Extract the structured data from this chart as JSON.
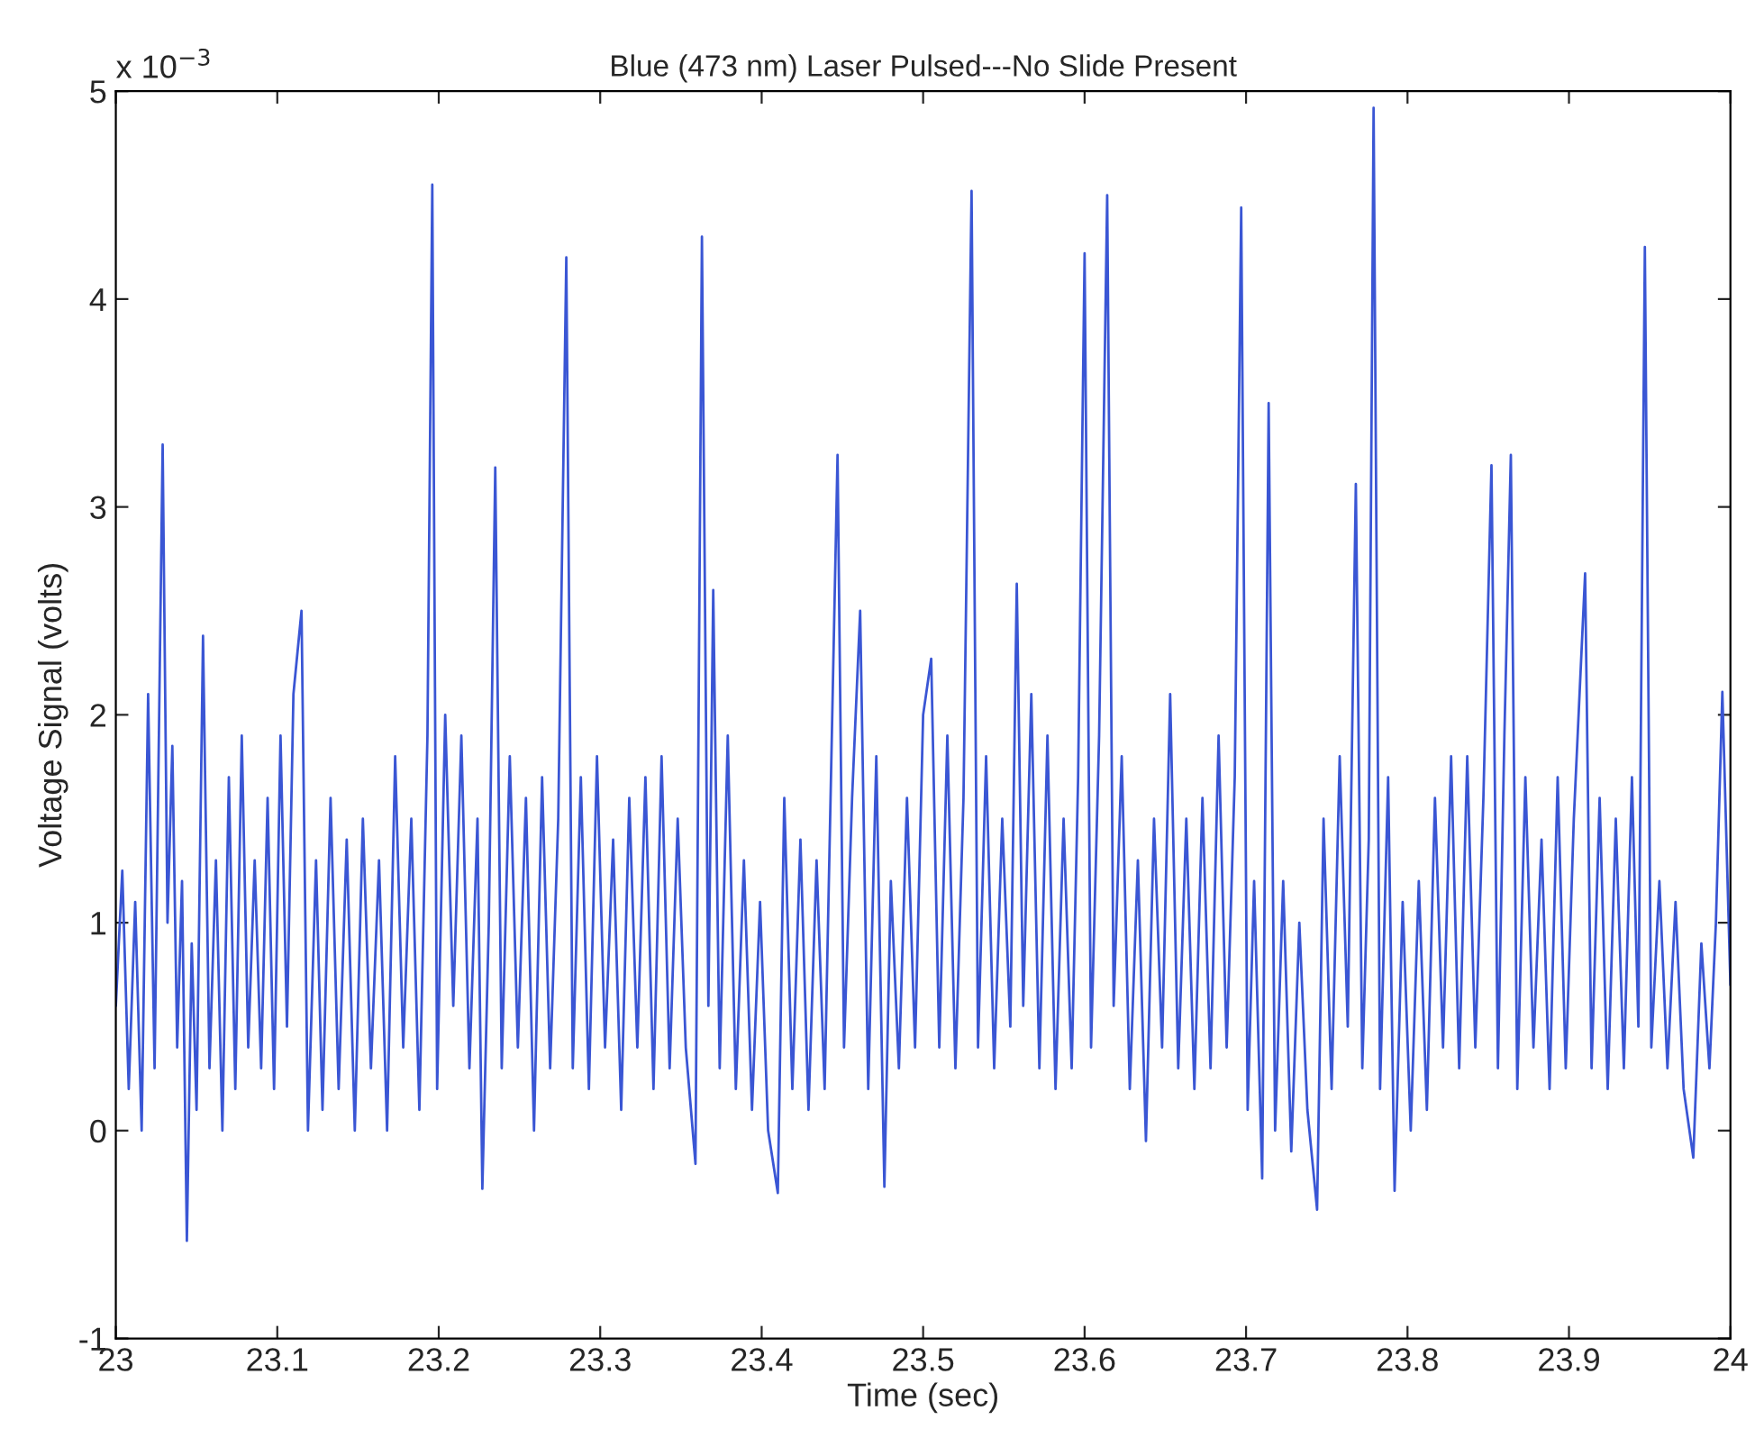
{
  "chart_data": {
    "type": "line",
    "title": "Blue (473 nm) Laser Pulsed---No Slide Present",
    "xlabel": "Time (sec)",
    "ylabel": "Voltage Signal (volts)",
    "annotations": [
      "x 10$^{−3}$"
    ],
    "xlim": [
      23,
      24
    ],
    "xticks": [
      23,
      23.1,
      23.2,
      23.3,
      23.4,
      23.5,
      23.6,
      23.7,
      23.8,
      23.9,
      24
    ],
    "ylim": [
      -1,
      5
    ],
    "yticks": [
      -1,
      0,
      1,
      2,
      3,
      4,
      5
    ],
    "grid": false,
    "marker": "none",
    "line_style": "solid",
    "x": [
      23.0,
      23.004,
      23.008,
      23.012,
      23.016,
      23.02,
      23.024,
      23.029,
      23.032,
      23.035,
      23.038,
      23.041,
      23.044,
      23.047,
      23.05,
      23.054,
      23.058,
      23.062,
      23.066,
      23.07,
      23.074,
      23.078,
      23.082,
      23.086,
      23.09,
      23.094,
      23.098,
      23.102,
      23.106,
      23.11,
      23.115,
      23.119,
      23.124,
      23.128,
      23.133,
      23.138,
      23.143,
      23.148,
      23.153,
      23.158,
      23.163,
      23.168,
      23.173,
      23.178,
      23.183,
      23.188,
      23.193,
      23.196,
      23.199,
      23.204,
      23.209,
      23.214,
      23.219,
      23.224,
      23.227,
      23.231,
      23.235,
      23.239,
      23.244,
      23.249,
      23.254,
      23.259,
      23.264,
      23.269,
      23.274,
      23.279,
      23.283,
      23.288,
      23.293,
      23.298,
      23.303,
      23.308,
      23.313,
      23.318,
      23.323,
      23.328,
      23.333,
      23.338,
      23.343,
      23.348,
      23.353,
      23.359,
      23.363,
      23.367,
      23.37,
      23.374,
      23.379,
      23.384,
      23.389,
      23.394,
      23.399,
      23.404,
      23.41,
      23.414,
      23.419,
      23.424,
      23.429,
      23.434,
      23.439,
      23.447,
      23.451,
      23.456,
      23.461,
      23.466,
      23.471,
      23.476,
      23.48,
      23.485,
      23.49,
      23.495,
      23.5,
      23.505,
      23.51,
      23.515,
      23.52,
      23.525,
      23.53,
      23.534,
      23.539,
      23.544,
      23.549,
      23.554,
      23.558,
      23.562,
      23.567,
      23.572,
      23.577,
      23.582,
      23.587,
      23.592,
      23.596,
      23.6,
      23.604,
      23.609,
      23.614,
      23.618,
      23.623,
      23.628,
      23.633,
      23.638,
      23.643,
      23.648,
      23.653,
      23.658,
      23.663,
      23.668,
      23.673,
      23.678,
      23.683,
      23.688,
      23.693,
      23.697,
      23.701,
      23.705,
      23.71,
      23.714,
      23.718,
      23.723,
      23.728,
      23.733,
      23.738,
      23.744,
      23.748,
      23.753,
      23.758,
      23.763,
      23.768,
      23.772,
      23.776,
      23.779,
      23.783,
      23.788,
      23.792,
      23.797,
      23.802,
      23.807,
      23.812,
      23.817,
      23.822,
      23.827,
      23.832,
      23.837,
      23.842,
      23.847,
      23.852,
      23.856,
      23.86,
      23.864,
      23.868,
      23.873,
      23.878,
      23.883,
      23.888,
      23.893,
      23.898,
      23.903,
      23.91,
      23.914,
      23.919,
      23.924,
      23.929,
      23.934,
      23.939,
      23.943,
      23.947,
      23.951,
      23.956,
      23.961,
      23.966,
      23.971,
      23.977,
      23.982,
      23.987,
      23.991,
      23.995,
      24.0
    ],
    "series": [
      {
        "color": "#3a56d4",
        "values": [
          0.6,
          1.25,
          0.2,
          1.1,
          0.0,
          2.1,
          0.3,
          3.3,
          1.0,
          1.85,
          0.4,
          1.2,
          -0.53,
          0.9,
          0.1,
          2.38,
          0.3,
          1.3,
          0.0,
          1.7,
          0.2,
          1.9,
          0.4,
          1.3,
          0.3,
          1.6,
          0.2,
          1.9,
          0.5,
          2.1,
          2.5,
          0.0,
          1.3,
          0.1,
          1.6,
          0.2,
          1.4,
          0.0,
          1.5,
          0.3,
          1.3,
          0.0,
          1.8,
          0.4,
          1.5,
          0.1,
          1.9,
          4.55,
          0.2,
          2.0,
          0.6,
          1.9,
          0.3,
          1.5,
          -0.28,
          1.0,
          3.19,
          0.3,
          1.8,
          0.4,
          1.6,
          0.0,
          1.7,
          0.3,
          1.5,
          4.2,
          0.3,
          1.7,
          0.2,
          1.8,
          0.4,
          1.4,
          0.1,
          1.6,
          0.4,
          1.7,
          0.2,
          1.8,
          0.3,
          1.5,
          0.4,
          -0.16,
          4.3,
          0.6,
          2.6,
          0.3,
          1.9,
          0.2,
          1.3,
          0.1,
          1.1,
          0.0,
          -0.3,
          1.6,
          0.2,
          1.4,
          0.1,
          1.3,
          0.2,
          3.25,
          0.4,
          1.6,
          2.5,
          0.2,
          1.8,
          -0.27,
          1.2,
          0.3,
          1.6,
          0.4,
          2.0,
          2.27,
          0.4,
          1.9,
          0.3,
          1.6,
          4.52,
          0.4,
          1.8,
          0.3,
          1.5,
          0.5,
          2.63,
          0.6,
          2.1,
          0.3,
          1.9,
          0.2,
          1.5,
          0.3,
          1.7,
          4.22,
          0.4,
          1.9,
          4.5,
          0.6,
          1.8,
          0.2,
          1.3,
          -0.05,
          1.5,
          0.4,
          2.1,
          0.3,
          1.5,
          0.2,
          1.6,
          0.3,
          1.9,
          0.4,
          1.7,
          4.44,
          0.1,
          1.2,
          -0.23,
          3.5,
          0.0,
          1.2,
          -0.1,
          1.0,
          0.1,
          -0.38,
          1.5,
          0.2,
          1.8,
          0.5,
          3.11,
          0.3,
          1.4,
          4.92,
          0.2,
          1.7,
          -0.29,
          1.1,
          0.0,
          1.2,
          0.1,
          1.6,
          0.4,
          1.8,
          0.3,
          1.8,
          0.4,
          1.6,
          3.2,
          0.3,
          1.9,
          3.25,
          0.2,
          1.7,
          0.4,
          1.4,
          0.2,
          1.7,
          0.3,
          1.5,
          2.68,
          0.3,
          1.6,
          0.2,
          1.5,
          0.3,
          1.7,
          0.5,
          4.25,
          0.4,
          1.2,
          0.3,
          1.1,
          0.2,
          -0.13,
          0.9,
          0.3,
          1.0,
          2.11,
          0.7
        ]
      }
    ]
  }
}
